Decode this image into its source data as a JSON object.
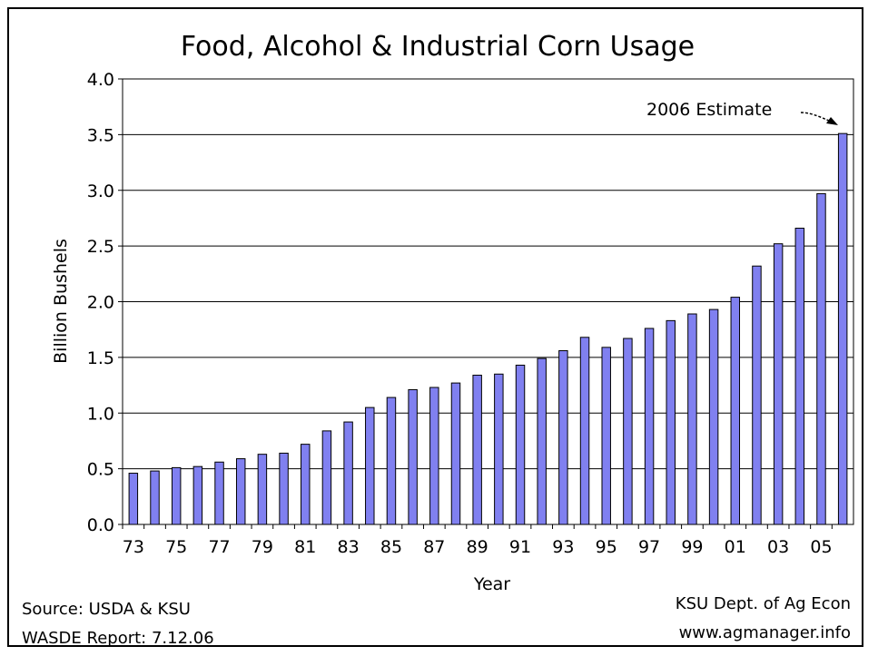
{
  "chart_data": {
    "type": "bar",
    "title": "Food, Alcohol & Industrial Corn Usage",
    "xlabel": "Year",
    "ylabel": "Billion Bushels",
    "ylim": [
      0,
      4.0
    ],
    "yticks": [
      "0.0",
      "0.5",
      "1.0",
      "1.5",
      "2.0",
      "2.5",
      "3.0",
      "3.5",
      "4.0"
    ],
    "grid": true,
    "bar_color": "#8080f0",
    "categories": [
      "73",
      "74",
      "75",
      "76",
      "77",
      "78",
      "79",
      "80",
      "81",
      "82",
      "83",
      "84",
      "85",
      "86",
      "87",
      "88",
      "89",
      "90",
      "91",
      "92",
      "93",
      "94",
      "95",
      "96",
      "97",
      "98",
      "99",
      "00",
      "01",
      "02",
      "03",
      "04",
      "05",
      "06"
    ],
    "x_tick_labels": [
      "73",
      "",
      "75",
      "",
      "77",
      "",
      "79",
      "",
      "81",
      "",
      "83",
      "",
      "85",
      "",
      "87",
      "",
      "89",
      "",
      "91",
      "",
      "93",
      "",
      "95",
      "",
      "97",
      "",
      "99",
      "",
      "01",
      "",
      "03",
      "",
      "05",
      ""
    ],
    "values": [
      0.46,
      0.48,
      0.51,
      0.52,
      0.56,
      0.59,
      0.63,
      0.64,
      0.72,
      0.84,
      0.92,
      1.05,
      1.14,
      1.21,
      1.23,
      1.27,
      1.34,
      1.35,
      1.43,
      1.49,
      1.56,
      1.68,
      1.59,
      1.67,
      1.76,
      1.83,
      1.89,
      1.93,
      2.04,
      2.32,
      2.52,
      2.66,
      2.97,
      3.51
    ],
    "annotation": "2006 Estimate"
  },
  "footer": {
    "source": "Source:  USDA & KSU",
    "report": "WASDE Report: 7.12.06",
    "dept": "KSU Dept. of Ag Econ",
    "website": "www.agmanager.info"
  }
}
